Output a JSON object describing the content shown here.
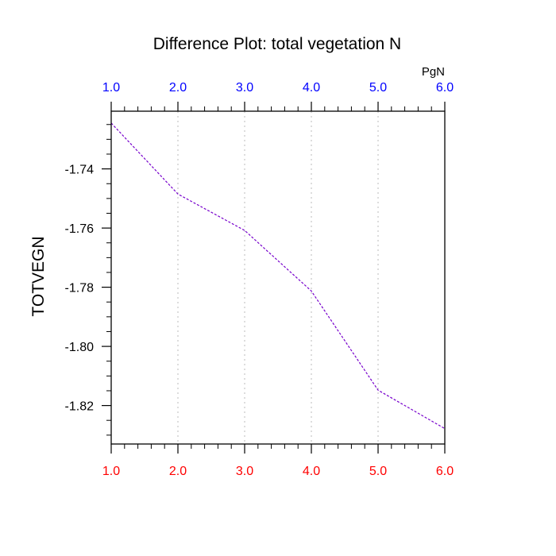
{
  "chart_data": {
    "type": "line",
    "title": "Difference Plot: total vegetation N",
    "ylabel": "TOTVEGN",
    "units": "PgN",
    "x": [
      1.0,
      2.0,
      3.0,
      4.0,
      5.0,
      6.0
    ],
    "series": [
      {
        "values": [
          -1.7245,
          -1.7485,
          -1.7608,
          -1.7813,
          -1.8148,
          -1.8278
        ],
        "color": "#7700cc"
      }
    ],
    "x_ticks": [
      "1.0",
      "2.0",
      "3.0",
      "4.0",
      "5.0",
      "6.0"
    ],
    "top_x_ticks": [
      "1.0",
      "2.0",
      "3.0",
      "4.0",
      "5.0",
      "6.0"
    ],
    "y_ticks": [
      {
        "value": -1.74,
        "label": "-1.74"
      },
      {
        "value": -1.76,
        "label": "-1.76"
      },
      {
        "value": -1.78,
        "label": "-1.78"
      },
      {
        "value": -1.8,
        "label": "-1.80"
      },
      {
        "value": -1.82,
        "label": "-1.82"
      }
    ],
    "xlim": [
      1.0,
      6.0
    ],
    "ylim": [
      -1.833,
      -1.7205
    ],
    "vertical_grid": "dotted",
    "colors": {
      "bottom_ticks": "#ff0000",
      "top_ticks": "#0000ff",
      "axis": "#000000",
      "grid": "#bbbbbb"
    }
  }
}
